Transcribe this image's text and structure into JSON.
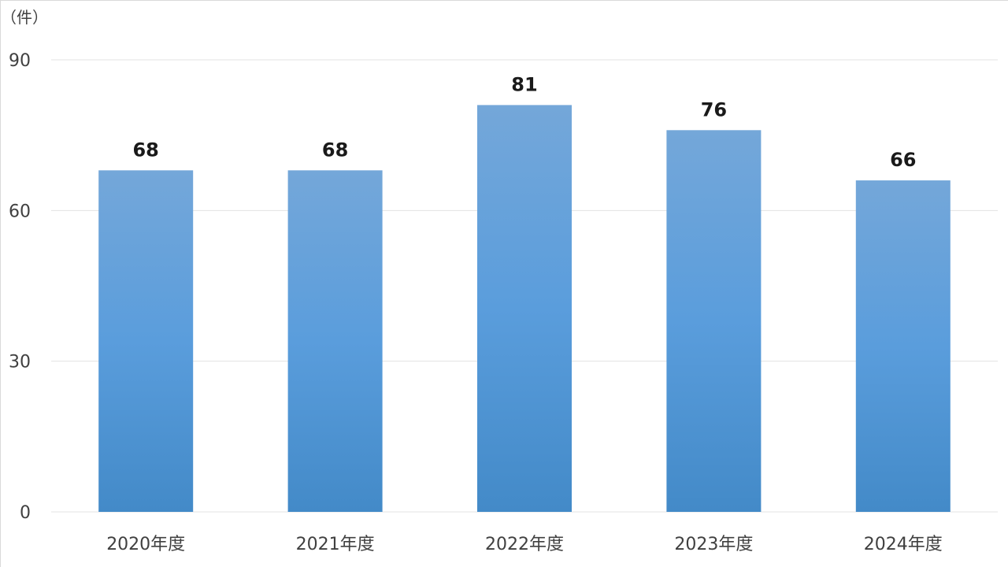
{
  "chart_data": {
    "type": "bar",
    "unit_label": "（件）",
    "categories": [
      "2020年度",
      "2021年度",
      "2022年度",
      "2023年度",
      "2024年度"
    ],
    "values": [
      68,
      68,
      81,
      76,
      66
    ],
    "y_ticks": [
      0,
      30,
      60,
      90
    ],
    "ylim": [
      0,
      90
    ],
    "grid": true,
    "data_labels": true,
    "colors": {
      "bar_top": "#74a7d9",
      "bar_mid": "#5a9ddc",
      "bar_bottom": "#438ac8"
    }
  }
}
